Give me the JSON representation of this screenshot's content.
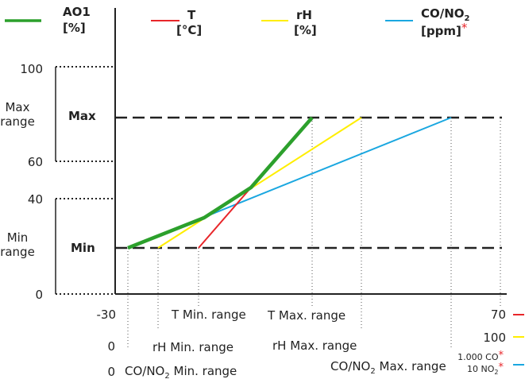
{
  "legend": [
    {
      "name": "AO1",
      "unit": "[%]",
      "color": "#2ca02c"
    },
    {
      "name": "T",
      "unit": "[°C]",
      "color": "#e8262a"
    },
    {
      "name": "rH",
      "unit": "[%]",
      "color": "#ffee00"
    },
    {
      "name": "CO/NO",
      "sub": "2",
      "unit": "[ppm]",
      "asterisk": "*",
      "color": "#1aa7e0"
    }
  ],
  "y_axis": {
    "tick_100": "100",
    "tick_60": "60",
    "tick_40": "40",
    "tick_0": "0",
    "max_range": [
      "Max",
      "range"
    ],
    "min_range": [
      "Min",
      "range"
    ],
    "max_label": "Max",
    "min_label": "Min"
  },
  "x_rows": {
    "t_row": {
      "start": "-30",
      "min": "T Min. range",
      "max": "T Max. range",
      "end": "70"
    },
    "rh_row": {
      "start": "0",
      "min": "rH Min. range",
      "max": "rH Max. range",
      "end": "100"
    },
    "co_row": {
      "start": "0",
      "min": "CO/NO",
      "min_sub": "2",
      "min_suffix": " Min. range",
      "max": "CO/NO",
      "max_sub": "2",
      "max_suffix": " Max. range",
      "end_co": "1.000 CO",
      "end_no": "10 NO",
      "end_no_sub": "2",
      "asterisk": "*"
    }
  },
  "chart_data": {
    "type": "line",
    "series": [
      {
        "name": "AO1 [%]",
        "color": "#2ca02c",
        "points": [
          [
            0.02,
            20
          ],
          [
            0.3,
            35
          ],
          [
            0.56,
            80
          ]
        ]
      },
      {
        "name": "T [°C]",
        "color": "#e8262a",
        "points": [
          [
            0.3,
            20
          ],
          [
            0.38,
            35
          ],
          [
            0.56,
            80
          ]
        ]
      },
      {
        "name": "rH [%]",
        "color": "#ffee00",
        "points": [
          [
            0.12,
            20
          ],
          [
            0.92,
            80
          ]
        ]
      },
      {
        "name": "CO/NO2 [ppm]",
        "color": "#1aa7e0",
        "points": [
          [
            0.0,
            20
          ],
          [
            1.0,
            80
          ]
        ]
      }
    ]
  }
}
